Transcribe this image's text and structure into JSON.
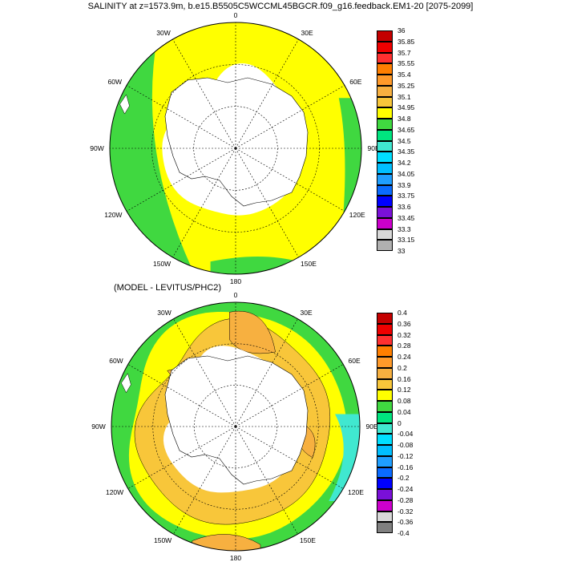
{
  "title": "SALINITY at z=1573.9m, b.e15.B5505C5WCCML45BGCR.f09_g16.feedback.EM1-20 [2075-2099]",
  "subtitle": "(MODEL - LEVITUS/PHC2)",
  "longitude_labels": [
    "0",
    "30E",
    "60E",
    "90E",
    "120E",
    "150E",
    "180",
    "150W",
    "120W",
    "90W",
    "60W",
    "30W"
  ],
  "top_map": {
    "colorbar_labels": [
      "36",
      "35.85",
      "35.7",
      "35.55",
      "35.4",
      "35.25",
      "35.1",
      "34.95",
      "34.8",
      "34.65",
      "34.5",
      "34.35",
      "34.2",
      "34.05",
      "33.9",
      "33.75",
      "33.6",
      "33.45",
      "33.3",
      "33.15",
      "33"
    ],
    "colorbar_colors": [
      "#c40000",
      "#ee0000",
      "#ff3030",
      "#ff7f00",
      "#ff9a2a",
      "#f7b040",
      "#f8c63a",
      "#ffff00",
      "#40d840",
      "#00e57f",
      "#40e8d0",
      "#00dfff",
      "#00bfff",
      "#1f9fff",
      "#0a6bff",
      "#0000ff",
      "#7a10d8",
      "#cc00cc",
      "#d8d8d8",
      "#b0b0b0"
    ]
  },
  "bottom_map": {
    "colorbar_labels": [
      "0.4",
      "0.36",
      "0.32",
      "0.28",
      "0.24",
      "0.2",
      "0.16",
      "0.12",
      "0.08",
      "0.04",
      "0",
      "-0.04",
      "-0.08",
      "-0.12",
      "-0.16",
      "-0.2",
      "-0.24",
      "-0.28",
      "-0.32",
      "-0.36",
      "-0.4"
    ],
    "colorbar_colors": [
      "#c40000",
      "#ee0000",
      "#ff3030",
      "#ff7f00",
      "#ff9a2a",
      "#f7b040",
      "#f8c63a",
      "#ffff00",
      "#40d840",
      "#00e57f",
      "#40e8d0",
      "#00dfff",
      "#00bfff",
      "#1f9fff",
      "#0a6bff",
      "#0000ff",
      "#7a10d8",
      "#cc00cc",
      "#d8d8d8",
      "#808080"
    ]
  },
  "colors": {
    "land": "#ffffff",
    "grid": "#000000",
    "top_base": "#ffff00",
    "top_rim": "#40d840",
    "bottom_base": "#f8c63a",
    "bottom_mid": "#ffff00",
    "bottom_rim": "#40d840",
    "bottom_patch": "#f7b040",
    "bottom_cyan": "#40e8d0"
  }
}
